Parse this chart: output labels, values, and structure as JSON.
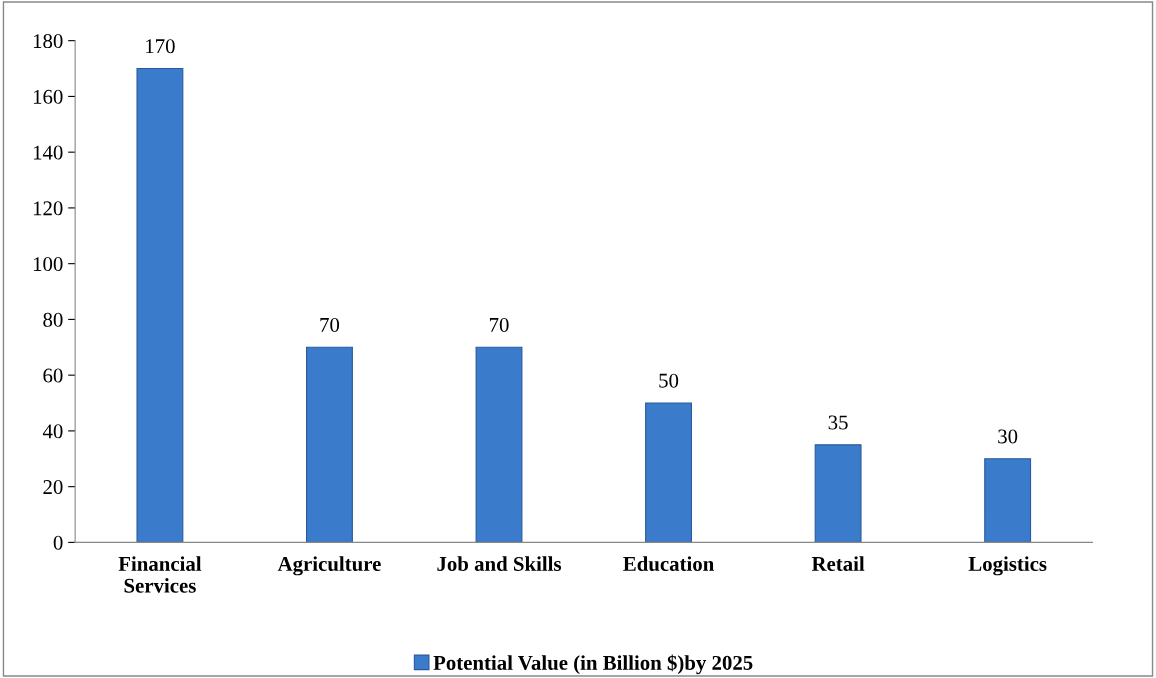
{
  "chart_data": {
    "type": "bar",
    "categories": [
      "Financial\nServices",
      "Agriculture",
      "Job and Skills",
      "Education",
      "Retail",
      "Logistics"
    ],
    "series": [
      {
        "name": "Potential Value (in Billion $)by 2025",
        "color": "#3a7bcc",
        "values": [
          170,
          70,
          70,
          50,
          35,
          30
        ]
      }
    ],
    "ylim": [
      0,
      180
    ],
    "yticks": [
      0,
      20,
      40,
      60,
      80,
      100,
      120,
      140,
      160,
      180
    ],
    "grid": false,
    "legend": "bottom",
    "data_labels": true
  }
}
